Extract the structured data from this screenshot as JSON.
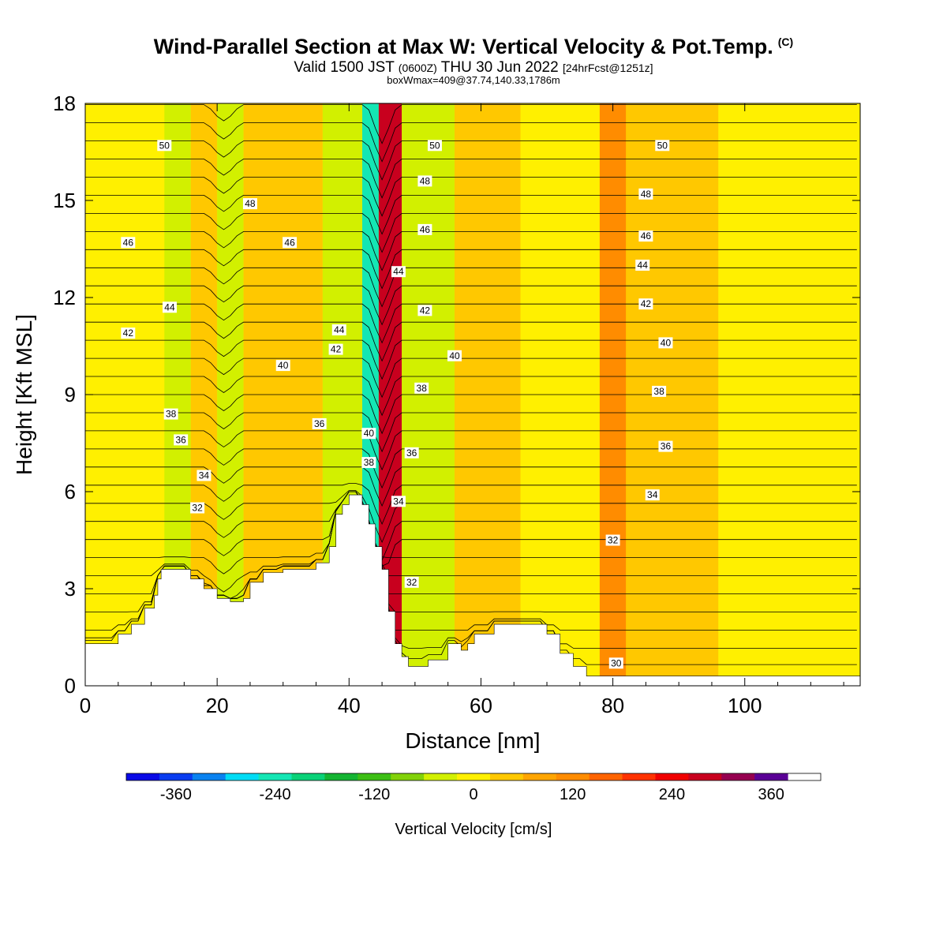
{
  "header": {
    "title": "Wind-Parallel Section at Max W: Vertical Velocity & Pot.Temp.",
    "copyright_mark": "(C)",
    "valid_prefix": "Valid 1500 JST",
    "valid_utc": "(0600Z)",
    "valid_date": "THU 30 Jun 2022",
    "forecast": "[24hrFcst@1251z]",
    "boxwmax": "boxWmax=409@37.74,140.33,1786m"
  },
  "chart_data": {
    "type": "heatmap",
    "xlabel": "Distance [nm]",
    "ylabel": "Height [Kft MSL]",
    "xlim": [
      0,
      117.5
    ],
    "ylim": [
      0,
      18
    ],
    "x_ticks": [
      0,
      20,
      40,
      60,
      80,
      100
    ],
    "y_ticks": [
      0,
      3,
      6,
      9,
      12,
      15,
      18
    ],
    "colorbar": {
      "title": "Vertical Velocity [cm/s]",
      "tick_labels": [
        "-360",
        "-240",
        "-120",
        "0",
        "120",
        "240",
        "360"
      ],
      "tick_values": [
        -360,
        -240,
        -120,
        0,
        120,
        240,
        360
      ],
      "min": -420,
      "max": 420,
      "step": 40,
      "colors": [
        "#0a0ae6",
        "#0a3cf0",
        "#0a82f0",
        "#00dcf5",
        "#14e6b4",
        "#0ad278",
        "#14b432",
        "#3cbe14",
        "#82d20a",
        "#d2f000",
        "#fff000",
        "#ffc800",
        "#ffa500",
        "#ff8c00",
        "#ff6400",
        "#ff3200",
        "#f00000",
        "#c8001e",
        "#960050",
        "#5a0096"
      ]
    },
    "background_w_field": {
      "description_values_cm_s": "bands of vertical velocity by distance (nm)",
      "bands": [
        {
          "x0": 0,
          "x1": 12,
          "w": 10
        },
        {
          "x0": 12,
          "x1": 16,
          "w": -40
        },
        {
          "x0": 16,
          "x1": 20,
          "w": 40
        },
        {
          "x0": 20,
          "x1": 24,
          "w": -60
        },
        {
          "x0": 24,
          "x1": 28,
          "w": 20
        },
        {
          "x0": 28,
          "x1": 36,
          "w": 40
        },
        {
          "x0": 36,
          "x1": 42,
          "w": -50
        },
        {
          "x0": 42,
          "x1": 44.5,
          "w": -240
        },
        {
          "x0": 44.5,
          "x1": 48,
          "w": 260
        },
        {
          "x0": 48,
          "x1": 56,
          "w": -30
        },
        {
          "x0": 56,
          "x1": 66,
          "w": 30
        },
        {
          "x0": 66,
          "x1": 78,
          "w": -20
        },
        {
          "x0": 78,
          "x1": 82,
          "w": 120
        },
        {
          "x0": 82,
          "x1": 96,
          "w": 20
        },
        {
          "x0": 96,
          "x1": 117.5,
          "w": -10
        }
      ]
    },
    "terrain_kft": {
      "x": [
        0,
        3,
        5,
        7,
        9,
        10.5,
        11,
        11.5,
        14,
        16,
        18,
        20,
        22,
        24,
        25,
        27,
        30,
        33,
        35,
        37,
        38,
        39,
        40,
        41,
        42,
        43,
        44,
        45,
        46,
        47,
        48,
        49,
        50,
        52,
        55,
        57,
        58,
        59,
        60,
        62,
        63,
        65,
        66,
        68,
        70,
        72,
        74,
        76,
        78,
        80,
        82,
        84,
        86,
        90,
        95,
        100,
        105,
        110,
        117.5
      ],
      "h": [
        1.3,
        1.3,
        1.6,
        1.9,
        2.4,
        2.8,
        3.3,
        3.6,
        3.6,
        3.3,
        3.0,
        2.7,
        2.6,
        2.7,
        3.2,
        3.5,
        3.6,
        3.6,
        3.8,
        4.3,
        5.3,
        5.6,
        5.9,
        5.9,
        5.6,
        5.0,
        4.3,
        3.6,
        2.3,
        1.3,
        0.9,
        0.6,
        0.6,
        0.8,
        1.3,
        1.1,
        1.3,
        1.6,
        1.6,
        1.9,
        1.9,
        1.9,
        1.9,
        1.9,
        1.6,
        1.0,
        0.6,
        0.3,
        0.3,
        0.3,
        0.3,
        0.3,
        0.3,
        0.3,
        0.3,
        0.3,
        0.3,
        0.3,
        0.3
      ]
    },
    "theta_contour_labels": [
      {
        "text": "50",
        "x": 12,
        "y": 16.7
      },
      {
        "text": "50",
        "x": 53,
        "y": 16.7
      },
      {
        "text": "50",
        "x": 87.5,
        "y": 16.7
      },
      {
        "text": "48",
        "x": 25,
        "y": 14.9
      },
      {
        "text": "48",
        "x": 51.5,
        "y": 15.6
      },
      {
        "text": "48",
        "x": 85,
        "y": 15.2
      },
      {
        "text": "46",
        "x": 6.5,
        "y": 13.7
      },
      {
        "text": "46",
        "x": 31,
        "y": 13.7
      },
      {
        "text": "46",
        "x": 51.5,
        "y": 14.1
      },
      {
        "text": "46",
        "x": 85,
        "y": 13.9
      },
      {
        "text": "44",
        "x": 12.8,
        "y": 11.7
      },
      {
        "text": "44",
        "x": 47.5,
        "y": 12.8
      },
      {
        "text": "44",
        "x": 84.5,
        "y": 13.0
      },
      {
        "text": "42",
        "x": 6.5,
        "y": 10.9
      },
      {
        "text": "42",
        "x": 38,
        "y": 10.4
      },
      {
        "text": "42",
        "x": 51.5,
        "y": 11.6
      },
      {
        "text": "42",
        "x": 85,
        "y": 11.8
      },
      {
        "text": "44",
        "x": 38.5,
        "y": 11.0
      },
      {
        "text": "40",
        "x": 30,
        "y": 9.9
      },
      {
        "text": "40",
        "x": 56,
        "y": 10.2
      },
      {
        "text": "40",
        "x": 88,
        "y": 10.6
      },
      {
        "text": "38",
        "x": 13,
        "y": 8.4
      },
      {
        "text": "38",
        "x": 51,
        "y": 9.2
      },
      {
        "text": "38",
        "x": 87,
        "y": 9.1
      },
      {
        "text": "36",
        "x": 14.5,
        "y": 7.6
      },
      {
        "text": "36",
        "x": 35.5,
        "y": 8.1
      },
      {
        "text": "36",
        "x": 49.5,
        "y": 7.2
      },
      {
        "text": "36",
        "x": 88,
        "y": 7.4
      },
      {
        "text": "34",
        "x": 18,
        "y": 6.5
      },
      {
        "text": "34",
        "x": 47.5,
        "y": 5.7
      },
      {
        "text": "34",
        "x": 86,
        "y": 5.9
      },
      {
        "text": "32",
        "x": 17,
        "y": 5.5
      },
      {
        "text": "32",
        "x": 49.5,
        "y": 3.2
      },
      {
        "text": "32",
        "x": 80,
        "y": 4.5
      },
      {
        "text": "40",
        "x": 43,
        "y": 7.8
      },
      {
        "text": "38",
        "x": 43,
        "y": 6.9
      },
      {
        "text": "30",
        "x": 80.5,
        "y": 0.7
      }
    ]
  }
}
